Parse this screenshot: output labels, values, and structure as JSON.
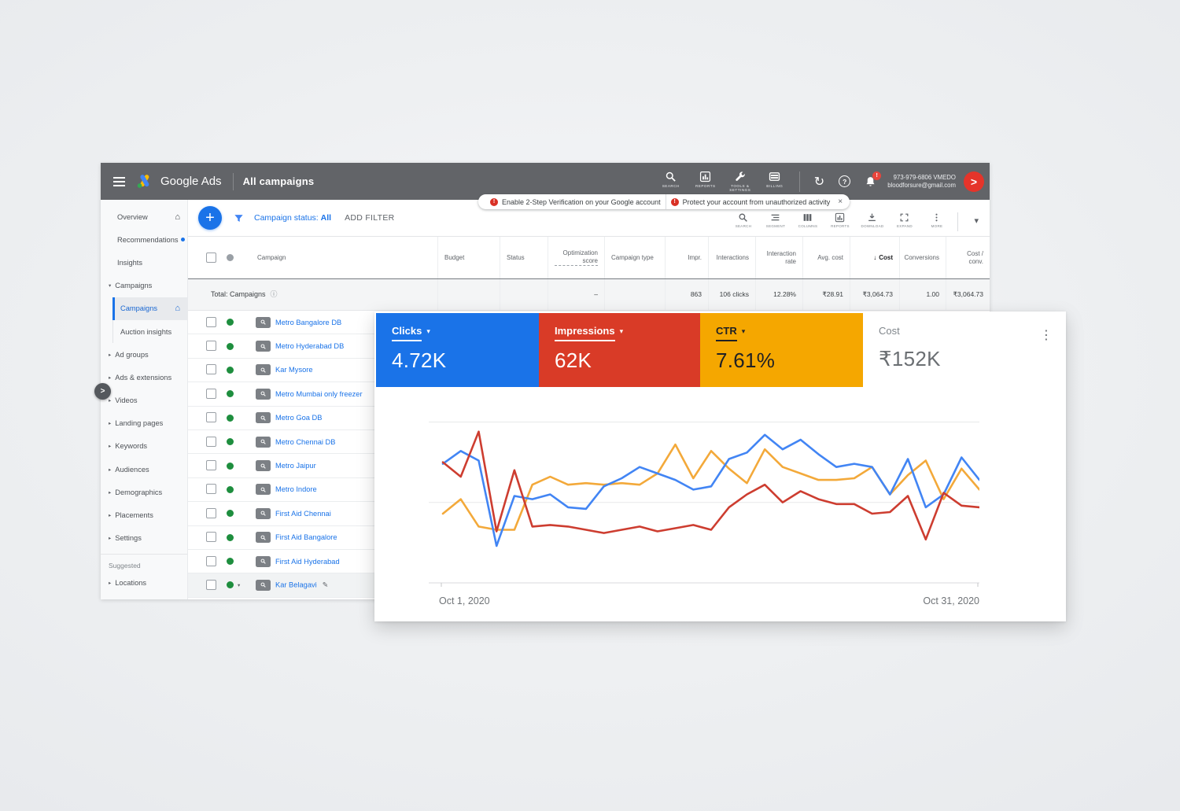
{
  "window": {
    "brand": "Google Ads",
    "page_title": "All campaigns",
    "account_id": "973-979-6806 VMEDO",
    "account_email": "bloodforsure@gmail.com",
    "tools": [
      {
        "icon": "search-icon",
        "label": "SEARCH"
      },
      {
        "icon": "reports-icon",
        "label": "REPORTS"
      },
      {
        "icon": "tools-icon",
        "label": "TOOLS & SETTINGS"
      },
      {
        "icon": "billing-icon",
        "label": "BILLING"
      }
    ]
  },
  "banner": {
    "messages": [
      "Enable 2-Step Verification on your Google account",
      "Protect your account from unauthorized activity"
    ],
    "close_label": "×"
  },
  "sidebar": {
    "items": [
      {
        "label": "Overview",
        "type": "top",
        "home": true
      },
      {
        "label": "Recommendations",
        "type": "top",
        "dot": true
      },
      {
        "label": "Insights",
        "type": "top"
      },
      {
        "label": "Campaigns",
        "type": "parent"
      },
      {
        "label": "Campaigns",
        "type": "child",
        "selected": true,
        "home": true
      },
      {
        "label": "Auction insights",
        "type": "child"
      },
      {
        "label": "Ad groups",
        "type": "collapsed"
      },
      {
        "label": "Ads & extensions",
        "type": "collapsed"
      },
      {
        "label": "Videos",
        "type": "collapsed"
      },
      {
        "label": "Landing pages",
        "type": "collapsed"
      },
      {
        "label": "Keywords",
        "type": "collapsed"
      },
      {
        "label": "Audiences",
        "type": "collapsed"
      },
      {
        "label": "Demographics",
        "type": "collapsed"
      },
      {
        "label": "Placements",
        "type": "collapsed"
      },
      {
        "label": "Settings",
        "type": "collapsed"
      },
      {
        "label": "Suggested",
        "type": "section"
      },
      {
        "label": "Locations",
        "type": "collapsed"
      }
    ]
  },
  "toolbar": {
    "campaign_status_prefix": "Campaign status:",
    "campaign_status_value": "All",
    "add_filter": "ADD FILTER",
    "icons": [
      {
        "icon": "search-icon",
        "label": "SEARCH"
      },
      {
        "icon": "segment-icon",
        "label": "SEGMENT"
      },
      {
        "icon": "columns-icon",
        "label": "COLUMNS"
      },
      {
        "icon": "reports-icon",
        "label": "REPORTS"
      },
      {
        "icon": "download-icon",
        "label": "DOWNLOAD"
      },
      {
        "icon": "expand-icon",
        "label": "EXPAND"
      },
      {
        "icon": "more-icon",
        "label": "MORE"
      }
    ]
  },
  "table": {
    "columns": [
      {
        "label": "Campaign"
      },
      {
        "label": "Budget"
      },
      {
        "label": "Status"
      },
      {
        "label": "Optimization score",
        "dotted": true
      },
      {
        "label": "Campaign type"
      },
      {
        "label": "Impr."
      },
      {
        "label": "Interactions"
      },
      {
        "label": "Interaction rate"
      },
      {
        "label": "Avg. cost"
      },
      {
        "label": "Cost",
        "sorted": true
      },
      {
        "label": "Conversions"
      },
      {
        "label": "Cost / conv."
      }
    ],
    "total": {
      "label": "Total: Campaigns",
      "optimization_score": "–",
      "impr": "863",
      "interactions": "106 clicks",
      "interaction_rate": "12.28%",
      "avg_cost": "₹28.91",
      "cost": "₹3,064.73",
      "conversions": "1.00",
      "cost_per_conv": "₹3,064.73"
    },
    "rows": [
      {
        "name": "Metro Bangalore DB"
      },
      {
        "name": "Metro Hyderabad DB"
      },
      {
        "name": "Kar Mysore"
      },
      {
        "name": "Metro Mumbai only freezer"
      },
      {
        "name": "Metro Goa DB"
      },
      {
        "name": "Metro Chennai DB"
      },
      {
        "name": "Metro Jaipur"
      },
      {
        "name": "Metro Indore"
      },
      {
        "name": "First Aid Chennai"
      },
      {
        "name": "First Aid Bangalore"
      },
      {
        "name": "First Aid Hyderabad"
      },
      {
        "name": "Kar Belagavi",
        "editable": true,
        "expanded": true,
        "highlighted": true
      }
    ]
  },
  "overlay": {
    "metrics": [
      {
        "label": "Clicks",
        "value": "4.72K",
        "bg": "#1a73e8",
        "fg": "#ffffff",
        "dropdown": true
      },
      {
        "label": "Impressions",
        "value": "62K",
        "bg": "#d93b27",
        "fg": "#ffffff",
        "dropdown": true
      },
      {
        "label": "CTR",
        "value": "7.61%",
        "bg": "#f5a700",
        "fg": "#202124",
        "dropdown": true
      },
      {
        "label": "Cost",
        "value": "₹152K",
        "bg": "#ffffff",
        "fg": "#6b6f73",
        "label_fg": "#80868b",
        "dropdown": false
      }
    ]
  },
  "chart_data": {
    "type": "line",
    "title": "Campaign performance, Oct 1 – Oct 31, 2020",
    "x_axis": {
      "start_label": "Oct 1, 2020",
      "end_label": "Oct 31, 2020",
      "points": 31
    },
    "y_axis": {
      "tick_labels_visible": false,
      "gridline_values": [
        50,
        100
      ],
      "value_range": [
        0,
        110
      ]
    },
    "legend_position": "metric-header-blocks",
    "series": [
      {
        "name": "Clicks",
        "color": "#4285f4",
        "values": [
          74,
          82,
          76,
          23,
          54,
          52,
          55,
          47,
          46,
          60,
          65,
          72,
          68,
          64,
          58,
          60,
          77,
          81,
          92,
          83,
          89,
          80,
          72,
          74,
          72,
          55,
          77,
          47,
          55,
          78,
          64
        ]
      },
      {
        "name": "Impressions",
        "color": "#cd3d30",
        "values": [
          75,
          66,
          94,
          32,
          70,
          35,
          36,
          35,
          33,
          31,
          33,
          35,
          32,
          34,
          36,
          33,
          47,
          55,
          61,
          50,
          57,
          52,
          49,
          49,
          43,
          44,
          54,
          27,
          56,
          48,
          47
        ]
      },
      {
        "name": "CTR",
        "color": "#f3a93a",
        "values": [
          43,
          52,
          35,
          33,
          33,
          61,
          66,
          61,
          62,
          61,
          62,
          61,
          68,
          86,
          65,
          82,
          71,
          62,
          83,
          72,
          68,
          64,
          64,
          65,
          72,
          55,
          67,
          76,
          52,
          71,
          58
        ]
      }
    ]
  },
  "icons": {
    "chevron_right": "▸",
    "chevron_down": "▾",
    "home": "⌂",
    "more_vertical": "⋮",
    "refresh": "↻",
    "help": "?",
    "close": "×",
    "plus": "+",
    "pencil": "✎",
    "info": "ⓘ",
    "exclaim": "!",
    "avatar_glyph": ">"
  }
}
